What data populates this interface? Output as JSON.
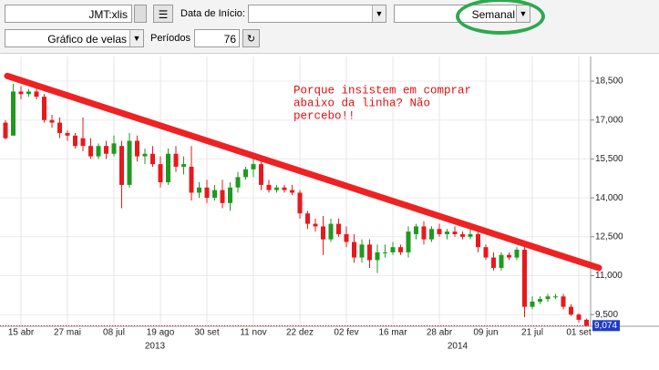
{
  "toolbar": {
    "symbol": "JMT:xlis",
    "start_label": "Data de Início:",
    "interval": "Semanal",
    "chart_kind": "Gráfico de velas",
    "periods_label": "Períodos",
    "periods": "76"
  },
  "chart_data": {
    "type": "candlestick",
    "categories": [
      null,
      null,
      "15 abr",
      null,
      null,
      null,
      null,
      null,
      "27 mai",
      null,
      null,
      null,
      null,
      null,
      "08 jul",
      null,
      null,
      null,
      null,
      null,
      "19 ago",
      null,
      null,
      null,
      null,
      null,
      "30 set",
      null,
      null,
      null,
      null,
      null,
      "11 nov",
      null,
      null,
      null,
      null,
      null,
      "22 dez",
      null,
      null,
      null,
      null,
      null,
      "02 fev",
      null,
      null,
      null,
      null,
      null,
      "16 mar",
      null,
      null,
      null,
      null,
      null,
      "28 abr",
      null,
      null,
      null,
      null,
      null,
      "09 jun",
      null,
      null,
      null,
      null,
      null,
      "21 jul",
      null,
      null,
      null,
      null,
      null,
      "01 set",
      null
    ],
    "years": [
      "2013",
      "2014"
    ],
    "open": [
      16900,
      16400,
      18100,
      18000,
      18100,
      17900,
      17000,
      16900,
      16500,
      16400,
      16300,
      16000,
      15600,
      16000,
      15700,
      16000,
      14500,
      16200,
      15600,
      15700,
      15300,
      14600,
      15700,
      15200,
      15200,
      14200,
      14400,
      14000,
      14300,
      13800,
      14400,
      14800,
      15100,
      15300,
      14500,
      14300,
      14400,
      14300,
      14200,
      13400,
      13000,
      12900,
      12400,
      13000,
      12600,
      12300,
      11700,
      12200,
      11600,
      11900,
      11900,
      12100,
      11900,
      12600,
      12900,
      12400,
      12800,
      12600,
      12700,
      12600,
      12500,
      12600,
      12100,
      11700,
      11300,
      11800,
      11700,
      12000,
      9800,
      10000,
      10100,
      10200,
      10200,
      9800,
      9500,
      9300
    ],
    "high": [
      17000,
      18400,
      18300,
      18200,
      18300,
      18000,
      17200,
      17100,
      16600,
      16500,
      17100,
      16300,
      16100,
      16200,
      16400,
      16200,
      16500,
      16400,
      15900,
      16000,
      15600,
      15900,
      16000,
      15600,
      16000,
      14600,
      14700,
      14500,
      14700,
      14600,
      15000,
      15200,
      15600,
      15500,
      14700,
      14500,
      14500,
      14500,
      14300,
      13500,
      13200,
      13300,
      13200,
      13200,
      12900,
      12600,
      12400,
      12400,
      12200,
      12200,
      12300,
      12200,
      12900,
      13000,
      13100,
      12900,
      13000,
      12800,
      12900,
      12700,
      12800,
      12700,
      12200,
      11900,
      11900,
      11900,
      12100,
      12100,
      10200,
      10200,
      10300,
      10300,
      10300,
      9900,
      9550,
      9350
    ],
    "low": [
      16250,
      16400,
      17800,
      17900,
      17800,
      16900,
      16700,
      16300,
      16200,
      15900,
      15800,
      15500,
      15500,
      15500,
      15600,
      13600,
      14400,
      15400,
      15300,
      15200,
      14400,
      14500,
      15000,
      14900,
      13900,
      14000,
      13800,
      13900,
      13600,
      13500,
      14200,
      14700,
      14800,
      14300,
      14200,
      14200,
      14200,
      14100,
      13200,
      12800,
      12700,
      11800,
      12300,
      12500,
      12100,
      11500,
      11500,
      11300,
      11100,
      11700,
      11800,
      11800,
      11700,
      12400,
      12200,
      12300,
      12500,
      12400,
      12500,
      12400,
      12400,
      11900,
      11600,
      11200,
      11200,
      11600,
      11600,
      9400,
      9700,
      9900,
      10000,
      10100,
      9700,
      9450,
      9200,
      9060
    ],
    "close": [
      16300,
      18100,
      18000,
      18100,
      17900,
      17000,
      16900,
      16500,
      16400,
      16000,
      16000,
      15600,
      16000,
      15700,
      16100,
      14500,
      16200,
      15600,
      15700,
      15300,
      14600,
      15700,
      15200,
      15300,
      14200,
      14400,
      14000,
      14300,
      13800,
      14400,
      14800,
      15100,
      15300,
      14500,
      14300,
      14400,
      14300,
      14200,
      13400,
      13000,
      12900,
      12400,
      13000,
      12600,
      12300,
      11700,
      12200,
      11600,
      11900,
      11900,
      12100,
      11900,
      12700,
      12900,
      12400,
      12800,
      12600,
      12700,
      12600,
      12500,
      12600,
      12100,
      11700,
      11300,
      11800,
      11700,
      12000,
      9800,
      10000,
      10100,
      10200,
      10200,
      9800,
      9500,
      9300,
      9074
    ],
    "up_color": "#1f9a1f",
    "down_color": "#e8191c",
    "ylim": [
      9050,
      19450
    ],
    "yticks": [
      {
        "value": 9500,
        "label": "9,500"
      },
      {
        "value": 11000,
        "label": "11,000"
      },
      {
        "value": 12500,
        "label": "12,500"
      },
      {
        "value": 14000,
        "label": "14,000"
      },
      {
        "value": 15500,
        "label": "15,500"
      },
      {
        "value": 17000,
        "label": "17,000"
      },
      {
        "value": 18500,
        "label": "18,500"
      }
    ],
    "last_price": {
      "value": 9074,
      "label": "9,074"
    },
    "trend_line": {
      "start": 18700,
      "end": 11300,
      "color": "#ee2222"
    },
    "annotation": [
      "Porque insistem em comprar",
      "abaixo da linha? Não",
      "percebo!!"
    ],
    "grid": true
  }
}
